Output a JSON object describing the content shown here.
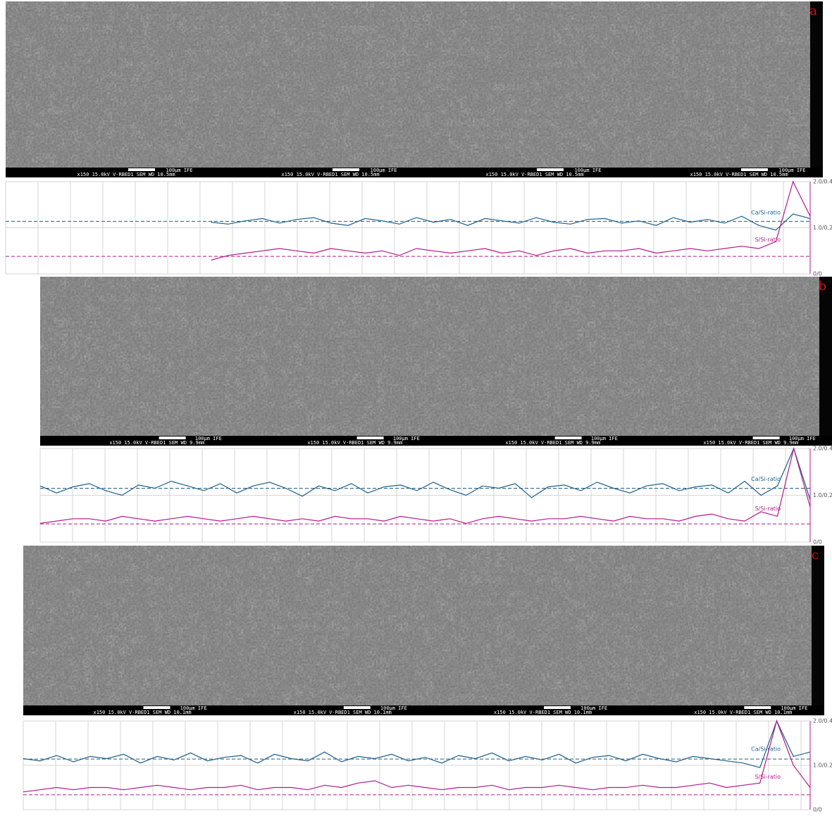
{
  "images": [
    {
      "label": "a",
      "info": [
        {
          "scale": "100µm IFE",
          "params": "x150   15.0kV V-RBED1  SEM    WD 10.5mm"
        },
        {
          "scale": "100µm IFE",
          "params": "x150   15.0kV V-RBED1  SEM    WD 10.5mm"
        },
        {
          "scale": "100µm IFE",
          "params": "x150   15.0kV V-RBED1  SEM    WD 10.5mm"
        },
        {
          "scale": "100µm IFE",
          "params": "x150   15.0kV V-RBED1  SEM    WD 10.5mm"
        }
      ]
    },
    {
      "label": "b",
      "info": [
        {
          "scale": "100µm IFE",
          "params": "x150   15.0kV V-RBED1  SEM    WD 9.9mm"
        },
        {
          "scale": "100µm IFE",
          "params": "x150   15.0kV V-RBED1  SEM    WD 9.9mm"
        },
        {
          "scale": "100µm IFE",
          "params": "x150   15.0kV V-RBED1  SEM    WD 9.9mm"
        },
        {
          "scale": "100µm IFE",
          "params": "x150   15.0kV V-RBED1  SEM    WD 9.9mm"
        }
      ]
    },
    {
      "label": "c",
      "info": [
        {
          "scale": "100µm IFE",
          "params": "x150   15.0kV V-RBED1  SEM    WD 10.1mm"
        },
        {
          "scale": "100µm IFE",
          "params": "x150   15.0kV V-RBED1  SEM    WD 10.1mm"
        },
        {
          "scale": "100µm IFE",
          "params": "x150   15.0kV V-RBED1  SEM    WD 10.1mm"
        },
        {
          "scale": "100µm IFE",
          "params": "x150   15.0kV V-RBED1  SEM    WD 10.1mm"
        }
      ]
    }
  ],
  "chart_data": [
    {
      "type": "line",
      "grid": true,
      "ylim": [
        0,
        2.0
      ],
      "y2lim": [
        0,
        0.4
      ],
      "yticks": [
        {
          "value": 2.0,
          "label": "2.0/0.4"
        },
        {
          "value": 1.0,
          "label": "1.0/0.2"
        },
        {
          "value": 0,
          "label": "0/0"
        }
      ],
      "reference_lines": [
        {
          "value": 1.14,
          "color": "#1f5f8b"
        },
        {
          "value": 0.076,
          "color": "#b5198c",
          "axis": "y2"
        }
      ],
      "series": [
        {
          "name": "Ca/Si-ratio",
          "color": "#1f5f8b",
          "values": [
            null,
            null,
            null,
            null,
            null,
            null,
            null,
            null,
            null,
            null,
            null,
            null,
            1.12,
            1.08,
            1.15,
            1.2,
            1.1,
            1.18,
            1.22,
            1.1,
            1.05,
            1.2,
            1.15,
            1.08,
            1.22,
            1.12,
            1.18,
            1.05,
            1.2,
            1.15,
            1.1,
            1.22,
            1.12,
            1.08,
            1.18,
            1.2,
            1.1,
            1.15,
            1.05,
            1.22,
            1.12,
            1.18,
            1.1,
            1.25,
            1.05,
            0.95,
            1.3,
            1.2
          ]
        },
        {
          "name": "S/Si-ratio",
          "color": "#b5198c",
          "axis": "y2",
          "values": [
            null,
            null,
            null,
            null,
            null,
            null,
            null,
            null,
            null,
            null,
            null,
            null,
            0.06,
            0.08,
            0.09,
            0.1,
            0.11,
            0.1,
            0.09,
            0.11,
            0.1,
            0.09,
            0.1,
            0.08,
            0.11,
            0.1,
            0.09,
            0.1,
            0.11,
            0.09,
            0.1,
            0.08,
            0.1,
            0.11,
            0.09,
            0.1,
            0.1,
            0.11,
            0.09,
            0.1,
            0.11,
            0.1,
            0.11,
            0.12,
            0.11,
            0.14,
            0.4,
            0.25
          ]
        }
      ]
    },
    {
      "type": "line",
      "grid": true,
      "ylim": [
        0,
        2.0
      ],
      "y2lim": [
        0,
        0.4
      ],
      "yticks": [
        {
          "value": 2.0,
          "label": "2.0/0.4"
        },
        {
          "value": 1.0,
          "label": "1.0/0.2"
        },
        {
          "value": 0,
          "label": "0/0"
        }
      ],
      "reference_lines": [
        {
          "value": 1.15,
          "color": "#1f5f8b"
        },
        {
          "value": 0.078,
          "color": "#b5198c",
          "axis": "y2"
        }
      ],
      "series": [
        {
          "name": "Ca/Si-ratio",
          "color": "#1f5f8b",
          "values": [
            1.2,
            1.05,
            1.18,
            1.25,
            1.1,
            1.0,
            1.22,
            1.15,
            1.3,
            1.2,
            1.1,
            1.25,
            1.05,
            1.2,
            1.28,
            1.15,
            0.98,
            1.2,
            1.1,
            1.25,
            1.05,
            1.18,
            1.22,
            1.1,
            1.28,
            1.12,
            1.0,
            1.2,
            1.15,
            1.25,
            0.95,
            1.18,
            1.22,
            1.1,
            1.28,
            1.15,
            1.05,
            1.2,
            1.25,
            1.1,
            1.18,
            1.22,
            1.05,
            1.3,
            1.0,
            1.2,
            2.0,
            0.9
          ]
        },
        {
          "name": "S/Si-ratio",
          "color": "#b5198c",
          "axis": "y2",
          "values": [
            0.08,
            0.09,
            0.1,
            0.1,
            0.09,
            0.11,
            0.1,
            0.09,
            0.1,
            0.11,
            0.1,
            0.09,
            0.1,
            0.11,
            0.1,
            0.09,
            0.1,
            0.09,
            0.11,
            0.1,
            0.1,
            0.09,
            0.11,
            0.1,
            0.09,
            0.1,
            0.08,
            0.1,
            0.11,
            0.1,
            0.09,
            0.1,
            0.1,
            0.11,
            0.1,
            0.09,
            0.11,
            0.1,
            0.1,
            0.09,
            0.11,
            0.12,
            0.1,
            0.09,
            0.13,
            0.11,
            0.4,
            0.15
          ]
        }
      ]
    },
    {
      "type": "line",
      "grid": true,
      "ylim": [
        0,
        2.0
      ],
      "y2lim": [
        0,
        0.4
      ],
      "yticks": [
        {
          "value": 2.0,
          "label": "2.0/0.4"
        },
        {
          "value": 1.0,
          "label": "1.0/0.2"
        },
        {
          "value": 0,
          "label": "0/0"
        }
      ],
      "reference_lines": [
        {
          "value": 1.14,
          "color": "#1f5f8b"
        },
        {
          "value": 0.067,
          "color": "#b5198c",
          "axis": "y2"
        }
      ],
      "series": [
        {
          "name": "Ca/Si-ratio",
          "color": "#1f5f8b",
          "values": [
            1.15,
            1.1,
            1.22,
            1.08,
            1.2,
            1.15,
            1.25,
            1.05,
            1.2,
            1.12,
            1.28,
            1.1,
            1.18,
            1.22,
            1.05,
            1.25,
            1.15,
            1.1,
            1.3,
            1.08,
            1.2,
            1.15,
            1.25,
            1.1,
            1.18,
            1.05,
            1.22,
            1.15,
            1.28,
            1.1,
            1.2,
            1.12,
            1.25,
            1.05,
            1.18,
            1.22,
            1.1,
            1.25,
            1.15,
            1.08,
            1.2,
            1.15,
            1.1,
            1.05,
            0.95,
            2.0,
            1.2,
            1.3
          ]
        },
        {
          "name": "S/Si-ratio",
          "color": "#b5198c",
          "axis": "y2",
          "values": [
            0.08,
            0.09,
            0.1,
            0.09,
            0.1,
            0.1,
            0.09,
            0.1,
            0.11,
            0.1,
            0.09,
            0.1,
            0.1,
            0.11,
            0.09,
            0.1,
            0.1,
            0.09,
            0.11,
            0.1,
            0.12,
            0.13,
            0.1,
            0.11,
            0.1,
            0.09,
            0.1,
            0.1,
            0.11,
            0.09,
            0.1,
            0.1,
            0.11,
            0.1,
            0.09,
            0.1,
            0.1,
            0.11,
            0.1,
            0.1,
            0.11,
            0.12,
            0.1,
            0.11,
            0.12,
            0.4,
            0.2,
            0.1
          ]
        }
      ]
    }
  ]
}
